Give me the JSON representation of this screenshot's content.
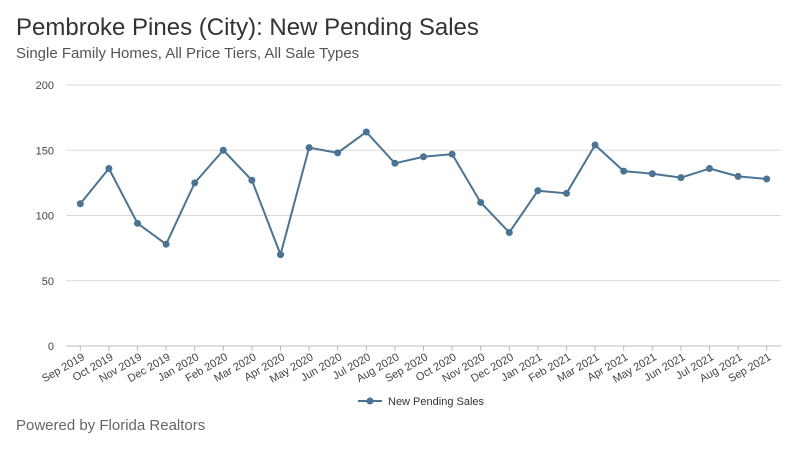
{
  "header": {
    "title": "Pembroke Pines (City): New Pending Sales",
    "subtitle": "Single Family Homes, All Price Tiers, All Sale Types"
  },
  "footer": {
    "text": "Powered by Florida Realtors"
  },
  "colors": {
    "series": "#4a7394",
    "grid": "#d9d9d9",
    "axis": "#bbbbbb"
  },
  "chart_data": {
    "type": "line",
    "title": "Pembroke Pines (City): New Pending Sales",
    "subtitle": "Single Family Homes, All Price Tiers, All Sale Types",
    "xlabel": "",
    "ylabel": "",
    "ylim": [
      0,
      200
    ],
    "yticks": [
      0,
      50,
      100,
      150,
      200
    ],
    "grid": "horizontal",
    "legend_position": "bottom",
    "categories": [
      "Sep 2019",
      "Oct 2019",
      "Nov 2019",
      "Dec 2019",
      "Jan 2020",
      "Feb 2020",
      "Mar 2020",
      "Apr 2020",
      "May 2020",
      "Jun 2020",
      "Jul 2020",
      "Aug 2020",
      "Sep 2020",
      "Oct 2020",
      "Nov 2020",
      "Dec 2020",
      "Jan 2021",
      "Feb 2021",
      "Mar 2021",
      "Apr 2021",
      "May 2021",
      "Jun 2021",
      "Jul 2021",
      "Aug 2021",
      "Sep 2021"
    ],
    "series": [
      {
        "name": "New Pending Sales",
        "values": [
          109,
          136,
          94,
          78,
          125,
          150,
          127,
          70,
          152,
          148,
          164,
          140,
          145,
          147,
          110,
          87,
          119,
          117,
          154,
          134,
          132,
          129,
          136,
          130,
          128
        ]
      }
    ]
  }
}
